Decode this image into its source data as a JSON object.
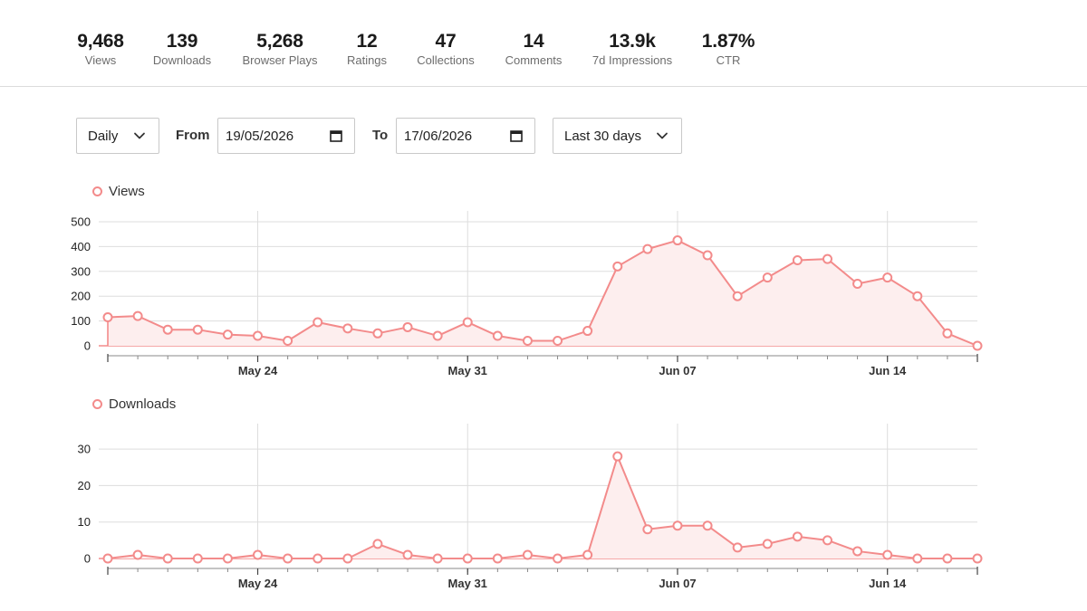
{
  "stats": [
    {
      "value": "9,468",
      "label": "Views"
    },
    {
      "value": "139",
      "label": "Downloads"
    },
    {
      "value": "5,268",
      "label": "Browser Plays"
    },
    {
      "value": "12",
      "label": "Ratings"
    },
    {
      "value": "47",
      "label": "Collections"
    },
    {
      "value": "14",
      "label": "Comments"
    },
    {
      "value": "13.9k",
      "label": "7d Impressions"
    },
    {
      "value": "1.87%",
      "label": "CTR"
    }
  ],
  "controls": {
    "interval": "Daily",
    "from_label": "From",
    "from_date": "19/05/2026",
    "to_label": "To",
    "to_date": "17/06/2026",
    "range": "Last 30 days"
  },
  "colors": {
    "series": "#f38b8b",
    "fill": "#fdeeee",
    "grid": "#dddddd",
    "axis": "#888888"
  },
  "chart_data": [
    {
      "type": "line",
      "legend": "Views",
      "x": [
        "2026-05-19",
        "2026-05-20",
        "2026-05-21",
        "2026-05-22",
        "2026-05-23",
        "2026-05-24",
        "2026-05-25",
        "2026-05-26",
        "2026-05-27",
        "2026-05-28",
        "2026-05-29",
        "2026-05-30",
        "2026-05-31",
        "2026-06-01",
        "2026-06-02",
        "2026-06-03",
        "2026-06-04",
        "2026-06-05",
        "2026-06-06",
        "2026-06-07",
        "2026-06-08",
        "2026-06-09",
        "2026-06-10",
        "2026-06-11",
        "2026-06-12",
        "2026-06-13",
        "2026-06-14",
        "2026-06-15",
        "2026-06-16",
        "2026-06-17"
      ],
      "values": [
        115,
        120,
        65,
        65,
        45,
        40,
        20,
        95,
        70,
        50,
        75,
        40,
        95,
        40,
        20,
        20,
        60,
        320,
        390,
        425,
        365,
        200,
        275,
        345,
        350,
        250,
        275,
        200,
        50,
        0
      ],
      "yticks": [
        0,
        100,
        200,
        300,
        400,
        500
      ],
      "ylim": [
        0,
        500
      ],
      "xticks": [
        {
          "date": "2026-05-24",
          "label": "May 24"
        },
        {
          "date": "2026-05-31",
          "label": "May 31"
        },
        {
          "date": "2026-06-07",
          "label": "Jun 07"
        },
        {
          "date": "2026-06-14",
          "label": "Jun 14"
        }
      ],
      "grid": true,
      "legend_position": "top-left"
    },
    {
      "type": "line",
      "legend": "Downloads",
      "x": [
        "2026-05-19",
        "2026-05-20",
        "2026-05-21",
        "2026-05-22",
        "2026-05-23",
        "2026-05-24",
        "2026-05-25",
        "2026-05-26",
        "2026-05-27",
        "2026-05-28",
        "2026-05-29",
        "2026-05-30",
        "2026-05-31",
        "2026-06-01",
        "2026-06-02",
        "2026-06-03",
        "2026-06-04",
        "2026-06-05",
        "2026-06-06",
        "2026-06-07",
        "2026-06-08",
        "2026-06-09",
        "2026-06-10",
        "2026-06-11",
        "2026-06-12",
        "2026-06-13",
        "2026-06-14",
        "2026-06-15",
        "2026-06-16",
        "2026-06-17"
      ],
      "values": [
        0,
        1,
        0,
        0,
        0,
        1,
        0,
        0,
        0,
        4,
        1,
        0,
        0,
        0,
        1,
        0,
        1,
        28,
        8,
        9,
        9,
        3,
        4,
        6,
        5,
        2,
        1,
        0,
        0,
        0
      ],
      "yticks": [
        0,
        10,
        20,
        30
      ],
      "ylim": [
        0,
        34
      ],
      "xticks": [
        {
          "date": "2026-05-24",
          "label": "May 24"
        },
        {
          "date": "2026-05-31",
          "label": "May 31"
        },
        {
          "date": "2026-06-07",
          "label": "Jun 07"
        },
        {
          "date": "2026-06-14",
          "label": "Jun 14"
        }
      ],
      "grid": true,
      "legend_position": "top-left"
    }
  ]
}
